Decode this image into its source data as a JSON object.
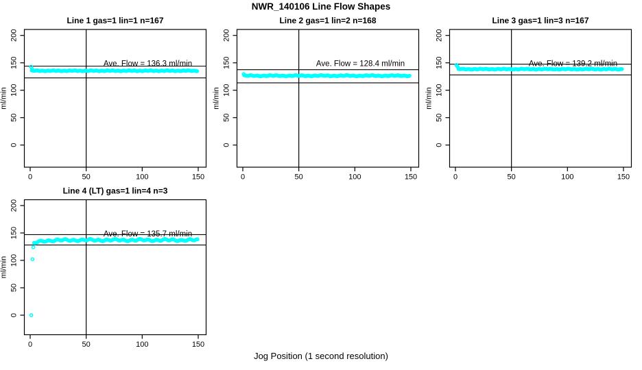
{
  "title": "NWR_140106  Line Flow Shapes",
  "chart_data": {
    "type": "scatter",
    "xlabel": "Jog Position (1 second resolution)",
    "ylabel": "ml/min",
    "x_ticks": [
      0,
      50,
      100,
      150
    ],
    "y_ticks": [
      0,
      50,
      100,
      150,
      200
    ],
    "xlim": [
      0,
      150
    ],
    "ylim": [
      0,
      200
    ],
    "point_color": "#00ffff",
    "line_color": "#000000",
    "grid": false,
    "legend_position": "none",
    "plots": [
      {
        "title": "Line 1 gas=1 lin=1 n=167",
        "annotation": "Ave. Flow =  136.3  ml/min",
        "ave_flow": 136.3,
        "n": 167,
        "vline_x": 50,
        "ref_line_high": 144,
        "ref_line_low": 122.5,
        "series": {
          "x_start": 1.4,
          "x_end": 149.5,
          "step": 0.9,
          "level": 135.5,
          "jitter1_amp": 0.5,
          "jitter1_freq": 1.3,
          "jitter2_amp": 0.3,
          "jitter2_freq": 0.37,
          "ramp_drop": 0,
          "ramp_tau": 1,
          "startup": [
            [
              0.8,
              143.0
            ],
            [
              1.6,
              139.5
            ]
          ]
        }
      },
      {
        "title": "Line 2 gas=1 lin=2 n=168",
        "annotation": "Ave. Flow =  128.4  ml/min",
        "ave_flow": 128.4,
        "n": 168,
        "vline_x": 50,
        "ref_line_high": 137.5,
        "ref_line_low": 113.5,
        "series": {
          "x_start": 1.2,
          "x_end": 149.5,
          "step": 0.9,
          "level": 126.5,
          "jitter1_amp": 0.6,
          "jitter1_freq": 1.1,
          "jitter2_amp": 0.4,
          "jitter2_freq": 0.29,
          "ramp_drop": 0,
          "ramp_tau": 1,
          "startup": [
            [
              0.8,
              129.5
            ]
          ]
        }
      },
      {
        "title": "Line 3 gas=1 lin=3 n=167",
        "annotation": "Ave. Flow =  139.2  ml/min",
        "ave_flow": 139.2,
        "n": 167,
        "vline_x": 50,
        "ref_line_high": 147.5,
        "ref_line_low": 128,
        "series": {
          "x_start": 2.8,
          "x_end": 149.5,
          "step": 0.9,
          "level": 138.5,
          "jitter1_amp": 0.5,
          "jitter1_freq": 1.2,
          "jitter2_amp": 0.35,
          "jitter2_freq": 0.33,
          "ramp_drop": 0,
          "ramp_tau": 1,
          "startup": [
            [
              0.8,
              146.0
            ],
            [
              1.6,
              144.0
            ],
            [
              2.4,
              141.5
            ]
          ]
        }
      },
      {
        "title": "Line 4 (LT) gas=1 lin=4 n=3",
        "annotation": "Ave. Flow =  135.7  ml/min",
        "ave_flow": 135.7,
        "n": 3,
        "vline_x": 50,
        "ref_line_high": 147,
        "ref_line_low": 128,
        "series": {
          "x_start": 3.5,
          "x_end": 149.5,
          "step": 0.9,
          "level": 137,
          "jitter1_amp": 1.2,
          "jitter1_freq": 0.85,
          "jitter2_amp": 0.8,
          "jitter2_freq": 0.27,
          "ramp_drop": 6,
          "ramp_tau": 7,
          "startup": [
            [
              1.0,
              0.0
            ],
            [
              2.0,
              102.0
            ],
            [
              2.8,
              124.0
            ]
          ]
        }
      }
    ]
  }
}
